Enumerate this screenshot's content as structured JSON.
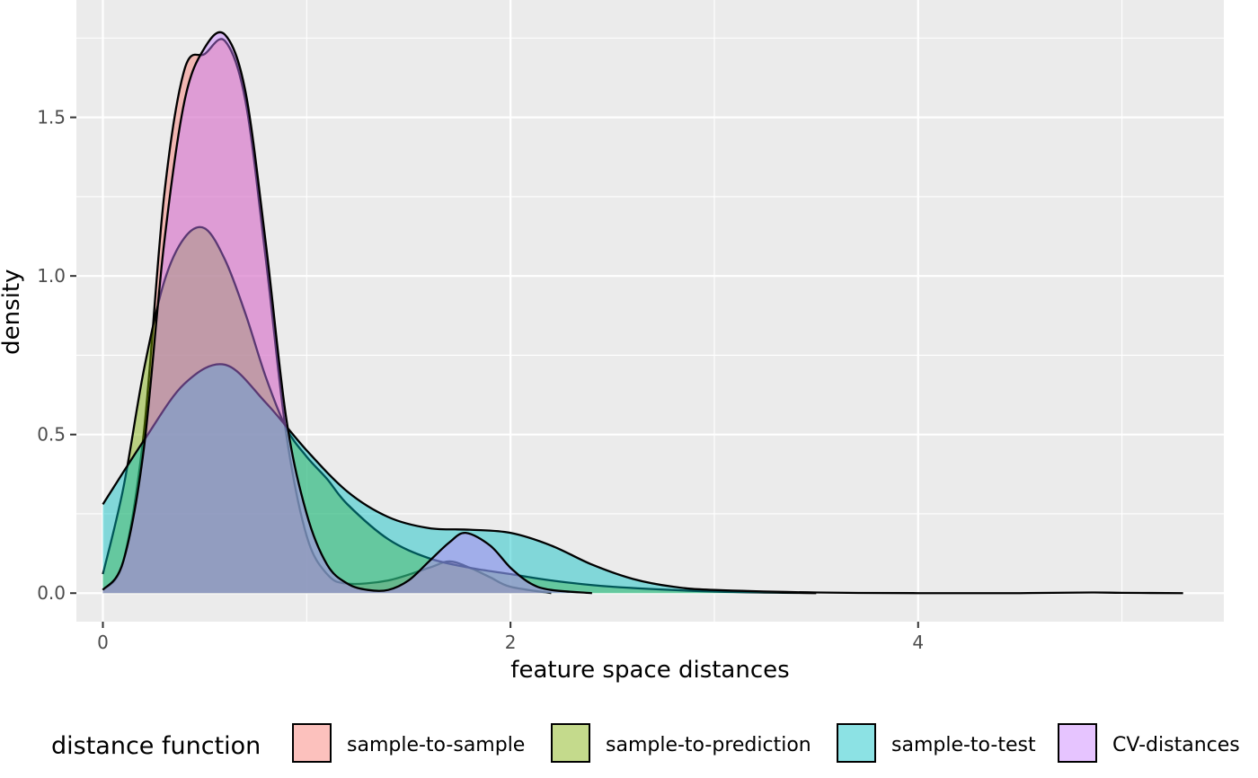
{
  "chart_data": {
    "type": "area",
    "subtype": "density",
    "title": "",
    "xlabel": "feature space distances",
    "ylabel": "density",
    "xlim": [
      -0.13,
      5.5
    ],
    "ylim": [
      -0.09,
      1.87
    ],
    "x_ticks": [
      0,
      2,
      4
    ],
    "x_tick_labels": [
      "0",
      "2",
      "4"
    ],
    "y_ticks": [
      0.0,
      0.5,
      1.0,
      1.5
    ],
    "y_tick_labels": [
      "0.0",
      "0.5",
      "1.0",
      "1.5"
    ],
    "grid": true,
    "background": "#ebebeb",
    "legend": {
      "title": "distance function",
      "position": "bottom",
      "entries": [
        "sample-to-sample",
        "sample-to-prediction",
        "sample-to-test",
        "CV-distances"
      ]
    },
    "series": [
      {
        "name": "sample-to-sample",
        "color": "#F8766D",
        "x": [
          0,
          0.1,
          0.2,
          0.3,
          0.4,
          0.5,
          0.6,
          0.7,
          0.8,
          0.9,
          1.0,
          1.1,
          1.2,
          1.4,
          1.6,
          1.7,
          1.8,
          1.9,
          2.0,
          2.2
        ],
        "y": [
          0.01,
          0.1,
          0.5,
          1.25,
          1.65,
          1.7,
          1.74,
          1.55,
          1.05,
          0.5,
          0.18,
          0.06,
          0.03,
          0.04,
          0.08,
          0.1,
          0.08,
          0.05,
          0.02,
          0.0
        ]
      },
      {
        "name": "sample-to-prediction",
        "color": "#7CAE00",
        "x": [
          0,
          0.1,
          0.2,
          0.3,
          0.4,
          0.5,
          0.6,
          0.7,
          0.8,
          0.9,
          1.0,
          1.1,
          1.2,
          1.4,
          1.6,
          1.8,
          2.0,
          2.2,
          2.5,
          3.0,
          3.5
        ],
        "y": [
          0.06,
          0.33,
          0.7,
          0.98,
          1.12,
          1.15,
          1.05,
          0.88,
          0.68,
          0.52,
          0.43,
          0.36,
          0.28,
          0.17,
          0.11,
          0.08,
          0.06,
          0.04,
          0.02,
          0.005,
          0.0
        ]
      },
      {
        "name": "sample-to-test",
        "color": "#00BFC4",
        "x": [
          0,
          0.2,
          0.4,
          0.6,
          0.8,
          1.0,
          1.2,
          1.4,
          1.6,
          1.8,
          2.0,
          2.2,
          2.4,
          2.6,
          2.8,
          3.0,
          3.5,
          4.0,
          4.5,
          4.85,
          5.0,
          5.3
        ],
        "y": [
          0.28,
          0.48,
          0.66,
          0.72,
          0.6,
          0.45,
          0.32,
          0.24,
          0.205,
          0.2,
          0.19,
          0.15,
          0.09,
          0.045,
          0.02,
          0.01,
          0.002,
          0.0,
          0.0,
          0.002,
          0.001,
          0.0
        ]
      },
      {
        "name": "CV-distances",
        "color": "#C77CFF",
        "x": [
          0,
          0.1,
          0.2,
          0.3,
          0.4,
          0.5,
          0.6,
          0.7,
          0.8,
          0.9,
          1.0,
          1.1,
          1.2,
          1.3,
          1.4,
          1.5,
          1.6,
          1.7,
          1.78,
          1.9,
          2.0,
          2.1,
          2.2,
          2.4
        ],
        "y": [
          0.01,
          0.1,
          0.45,
          1.1,
          1.55,
          1.72,
          1.76,
          1.58,
          1.1,
          0.55,
          0.25,
          0.09,
          0.03,
          0.01,
          0.01,
          0.04,
          0.1,
          0.16,
          0.19,
          0.15,
          0.08,
          0.03,
          0.01,
          0.0
        ]
      }
    ]
  }
}
